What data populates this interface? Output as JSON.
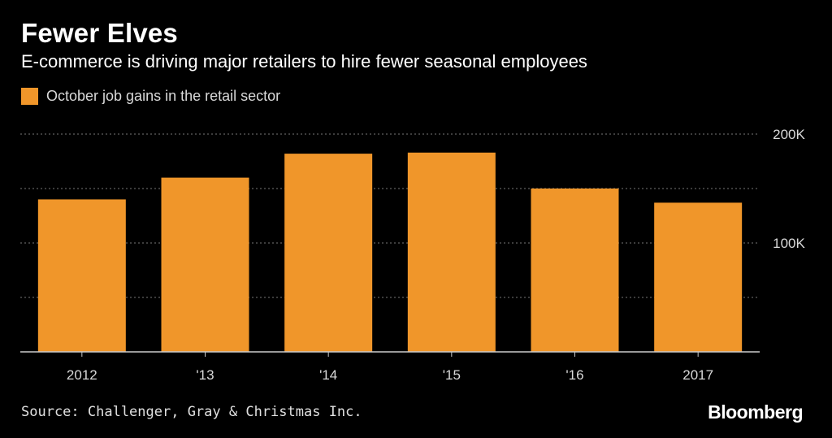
{
  "title": "Fewer Elves",
  "subtitle": "E-commerce is driving major retailers to hire fewer seasonal employees",
  "source": "Source: Challenger, Gray & Christmas Inc.",
  "brand": "Bloomberg",
  "colors": {
    "background": "#000000",
    "bar": "#f0962a",
    "grid": "#777777",
    "text": "#d9d9d9"
  },
  "chart_data": {
    "type": "bar",
    "categories": [
      "2012",
      "'13",
      "'14",
      "'15",
      "'16",
      "2017"
    ],
    "series": [
      {
        "name": "October job gains in the retail sector",
        "values": [
          140000,
          160000,
          182000,
          183000,
          150000,
          137000
        ]
      }
    ],
    "ylim": [
      0,
      200000
    ],
    "yticks": [
      0,
      50000,
      100000,
      150000,
      200000
    ],
    "ytick_labels": {
      "100000": "100K",
      "200000": "200K"
    },
    "ylabel": "",
    "xlabel": "",
    "grid": true,
    "legend_position": "top-left"
  }
}
